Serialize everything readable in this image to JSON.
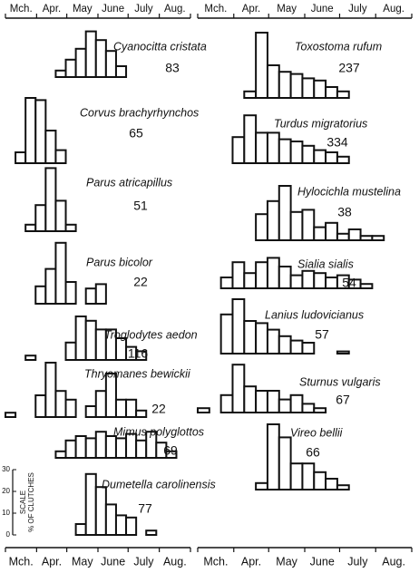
{
  "axis": {
    "months": [
      "Mch.",
      "Apr.",
      "May",
      "June",
      "July",
      "Aug."
    ],
    "xlim": [
      0,
      184
    ],
    "xticks": [
      0,
      31,
      61,
      92,
      122,
      153,
      184
    ]
  },
  "scale": {
    "label": "SCALE",
    "unit": "% OF CLUTCHES",
    "ylim": [
      0,
      30
    ],
    "yticks": [
      0,
      10,
      20,
      30
    ]
  },
  "chart_data": [
    {
      "type": "histogram",
      "title": "Cyanocitta cristata",
      "sample": 83,
      "bins": [
        0,
        10,
        20,
        30,
        40,
        50,
        60,
        70,
        80,
        90,
        100,
        110,
        120,
        130,
        140,
        150,
        160,
        170,
        180
      ],
      "values": [
        0,
        0,
        0,
        0,
        0,
        3,
        8,
        13,
        21,
        17,
        12,
        5,
        0,
        0,
        0,
        0,
        0,
        0
      ],
      "color": "#111111"
    },
    {
      "type": "histogram",
      "title": "Corvus brachyrhynchos",
      "sample": 65,
      "bins": [
        0,
        10,
        20,
        30,
        40,
        50,
        60,
        70,
        80,
        90,
        100,
        110,
        120,
        130,
        140,
        150,
        160,
        170,
        180
      ],
      "values": [
        0,
        5,
        30,
        29,
        15,
        6,
        0,
        0,
        0,
        0,
        0,
        0,
        0,
        0,
        0,
        0,
        0,
        0
      ],
      "color": "#111111"
    },
    {
      "type": "histogram",
      "title": "Parus atricapillus",
      "sample": 51,
      "bins": [
        0,
        10,
        20,
        30,
        40,
        50,
        60,
        70,
        80,
        90,
        100,
        110,
        120,
        130,
        140,
        150,
        160,
        170,
        180
      ],
      "values": [
        0,
        0,
        3,
        12,
        29,
        14,
        3,
        0,
        0,
        0,
        0,
        0,
        0,
        0,
        0,
        0,
        0,
        0
      ],
      "color": "#111111"
    },
    {
      "type": "histogram",
      "title": "Parus bicolor",
      "sample": 22,
      "bins": [
        0,
        10,
        20,
        30,
        40,
        50,
        60,
        70,
        80,
        90,
        100,
        110,
        120,
        130,
        140,
        150,
        160,
        170,
        180
      ],
      "values": [
        0,
        0,
        0,
        8,
        16,
        28,
        10,
        0,
        7,
        9,
        0,
        0,
        0,
        0,
        0,
        0,
        0,
        0
      ],
      "color": "#111111"
    },
    {
      "type": "histogram",
      "title": "Troglodytes aedon",
      "sample": 116,
      "bins": [
        0,
        10,
        20,
        30,
        40,
        50,
        60,
        70,
        80,
        90,
        100,
        110,
        120,
        130,
        140,
        150,
        160,
        170,
        180
      ],
      "values": [
        0,
        0,
        2,
        0,
        0,
        0,
        8,
        20,
        18,
        14,
        14,
        10,
        6,
        4,
        0,
        0,
        0,
        0
      ],
      "color": "#111111"
    },
    {
      "type": "histogram",
      "title": "Thryomanes bewickii",
      "sample": 22,
      "bins": [
        0,
        10,
        20,
        30,
        40,
        50,
        60,
        70,
        80,
        90,
        100,
        110,
        120,
        130,
        140,
        150,
        160,
        170,
        180
      ],
      "values": [
        2,
        0,
        0,
        10,
        25,
        12,
        8,
        0,
        5,
        12,
        20,
        8,
        8,
        3,
        0,
        0,
        0,
        0
      ],
      "color": "#111111"
    },
    {
      "type": "histogram",
      "title": "Mimus polyglottos",
      "sample": 69,
      "bins": [
        0,
        10,
        20,
        30,
        40,
        50,
        60,
        70,
        80,
        90,
        100,
        110,
        120,
        130,
        140,
        150,
        160,
        170,
        180
      ],
      "values": [
        0,
        0,
        0,
        0,
        0,
        3,
        8,
        10,
        9,
        12,
        10,
        9,
        11,
        8,
        12,
        7,
        3,
        0
      ],
      "color": "#111111"
    },
    {
      "type": "histogram",
      "title": "Dumetella carolinensis",
      "sample": 77,
      "bins": [
        0,
        10,
        20,
        30,
        40,
        50,
        60,
        70,
        80,
        90,
        100,
        110,
        120,
        130,
        140,
        150,
        160,
        170,
        180
      ],
      "values": [
        0,
        0,
        0,
        0,
        0,
        0,
        0,
        5,
        28,
        22,
        14,
        9,
        8,
        0,
        2,
        0,
        0,
        0
      ],
      "color": "#111111"
    },
    {
      "type": "histogram",
      "title": "Toxostoma rufum",
      "sample": 237,
      "bins": [
        0,
        10,
        20,
        30,
        40,
        50,
        60,
        70,
        80,
        90,
        100,
        110,
        120,
        130,
        140,
        150,
        160,
        170,
        180
      ],
      "values": [
        0,
        0,
        0,
        0,
        3,
        30,
        15,
        12,
        11,
        9,
        8,
        5,
        3,
        0,
        0,
        0,
        0,
        0
      ],
      "color": "#111111"
    },
    {
      "type": "histogram",
      "title": "Turdus migratorius",
      "sample": 334,
      "bins": [
        0,
        10,
        20,
        30,
        40,
        50,
        60,
        70,
        80,
        90,
        100,
        110,
        120,
        130,
        140,
        150,
        160,
        170,
        180
      ],
      "values": [
        0,
        0,
        0,
        12,
        22,
        14,
        14,
        11,
        10,
        8,
        6,
        5,
        3,
        0,
        0,
        0,
        0,
        0
      ],
      "color": "#111111"
    },
    {
      "type": "histogram",
      "title": "Hylocichla mustelina",
      "sample": 38,
      "bins": [
        0,
        10,
        20,
        30,
        40,
        50,
        60,
        70,
        80,
        90,
        100,
        110,
        120,
        130,
        140,
        150,
        160,
        170,
        180
      ],
      "values": [
        0,
        0,
        0,
        0,
        0,
        12,
        18,
        25,
        13,
        14,
        6,
        8,
        3,
        5,
        2,
        2,
        0,
        0
      ],
      "color": "#111111"
    },
    {
      "type": "histogram",
      "title": "Sialia sialis",
      "sample": 54,
      "bins": [
        0,
        10,
        20,
        30,
        40,
        50,
        60,
        70,
        80,
        90,
        100,
        110,
        120,
        130,
        140,
        150,
        160,
        170,
        180
      ],
      "values": [
        0,
        0,
        5,
        12,
        7,
        12,
        14,
        10,
        6,
        8,
        7,
        5,
        6,
        4,
        2,
        0,
        0,
        0
      ],
      "color": "#111111"
    },
    {
      "type": "histogram",
      "title": "Lanius ludovicianus",
      "sample": 57,
      "bins": [
        0,
        10,
        20,
        30,
        40,
        50,
        60,
        70,
        80,
        90,
        100,
        110,
        120,
        130,
        140,
        150,
        160,
        170,
        180
      ],
      "values": [
        0,
        0,
        18,
        25,
        15,
        14,
        11,
        8,
        6,
        5,
        0,
        0,
        1,
        0,
        0,
        0,
        0,
        0
      ],
      "color": "#111111"
    },
    {
      "type": "histogram",
      "title": "Sturnus vulgaris",
      "sample": 67,
      "bins": [
        0,
        10,
        20,
        30,
        40,
        50,
        60,
        70,
        80,
        90,
        100,
        110,
        120,
        130,
        140,
        150,
        160,
        170,
        180
      ],
      "values": [
        2,
        0,
        8,
        22,
        12,
        10,
        10,
        6,
        8,
        4,
        2,
        0,
        0,
        0,
        0,
        0,
        0,
        0
      ],
      "color": "#111111"
    },
    {
      "type": "histogram",
      "title": "Vireo bellii",
      "sample": 66,
      "bins": [
        0,
        10,
        20,
        30,
        40,
        50,
        60,
        70,
        80,
        90,
        100,
        110,
        120,
        130,
        140,
        150,
        160,
        170,
        180
      ],
      "values": [
        0,
        0,
        0,
        0,
        0,
        3,
        30,
        24,
        12,
        12,
        8,
        5,
        2,
        0,
        0,
        0,
        0,
        0
      ],
      "color": "#111111"
    }
  ]
}
